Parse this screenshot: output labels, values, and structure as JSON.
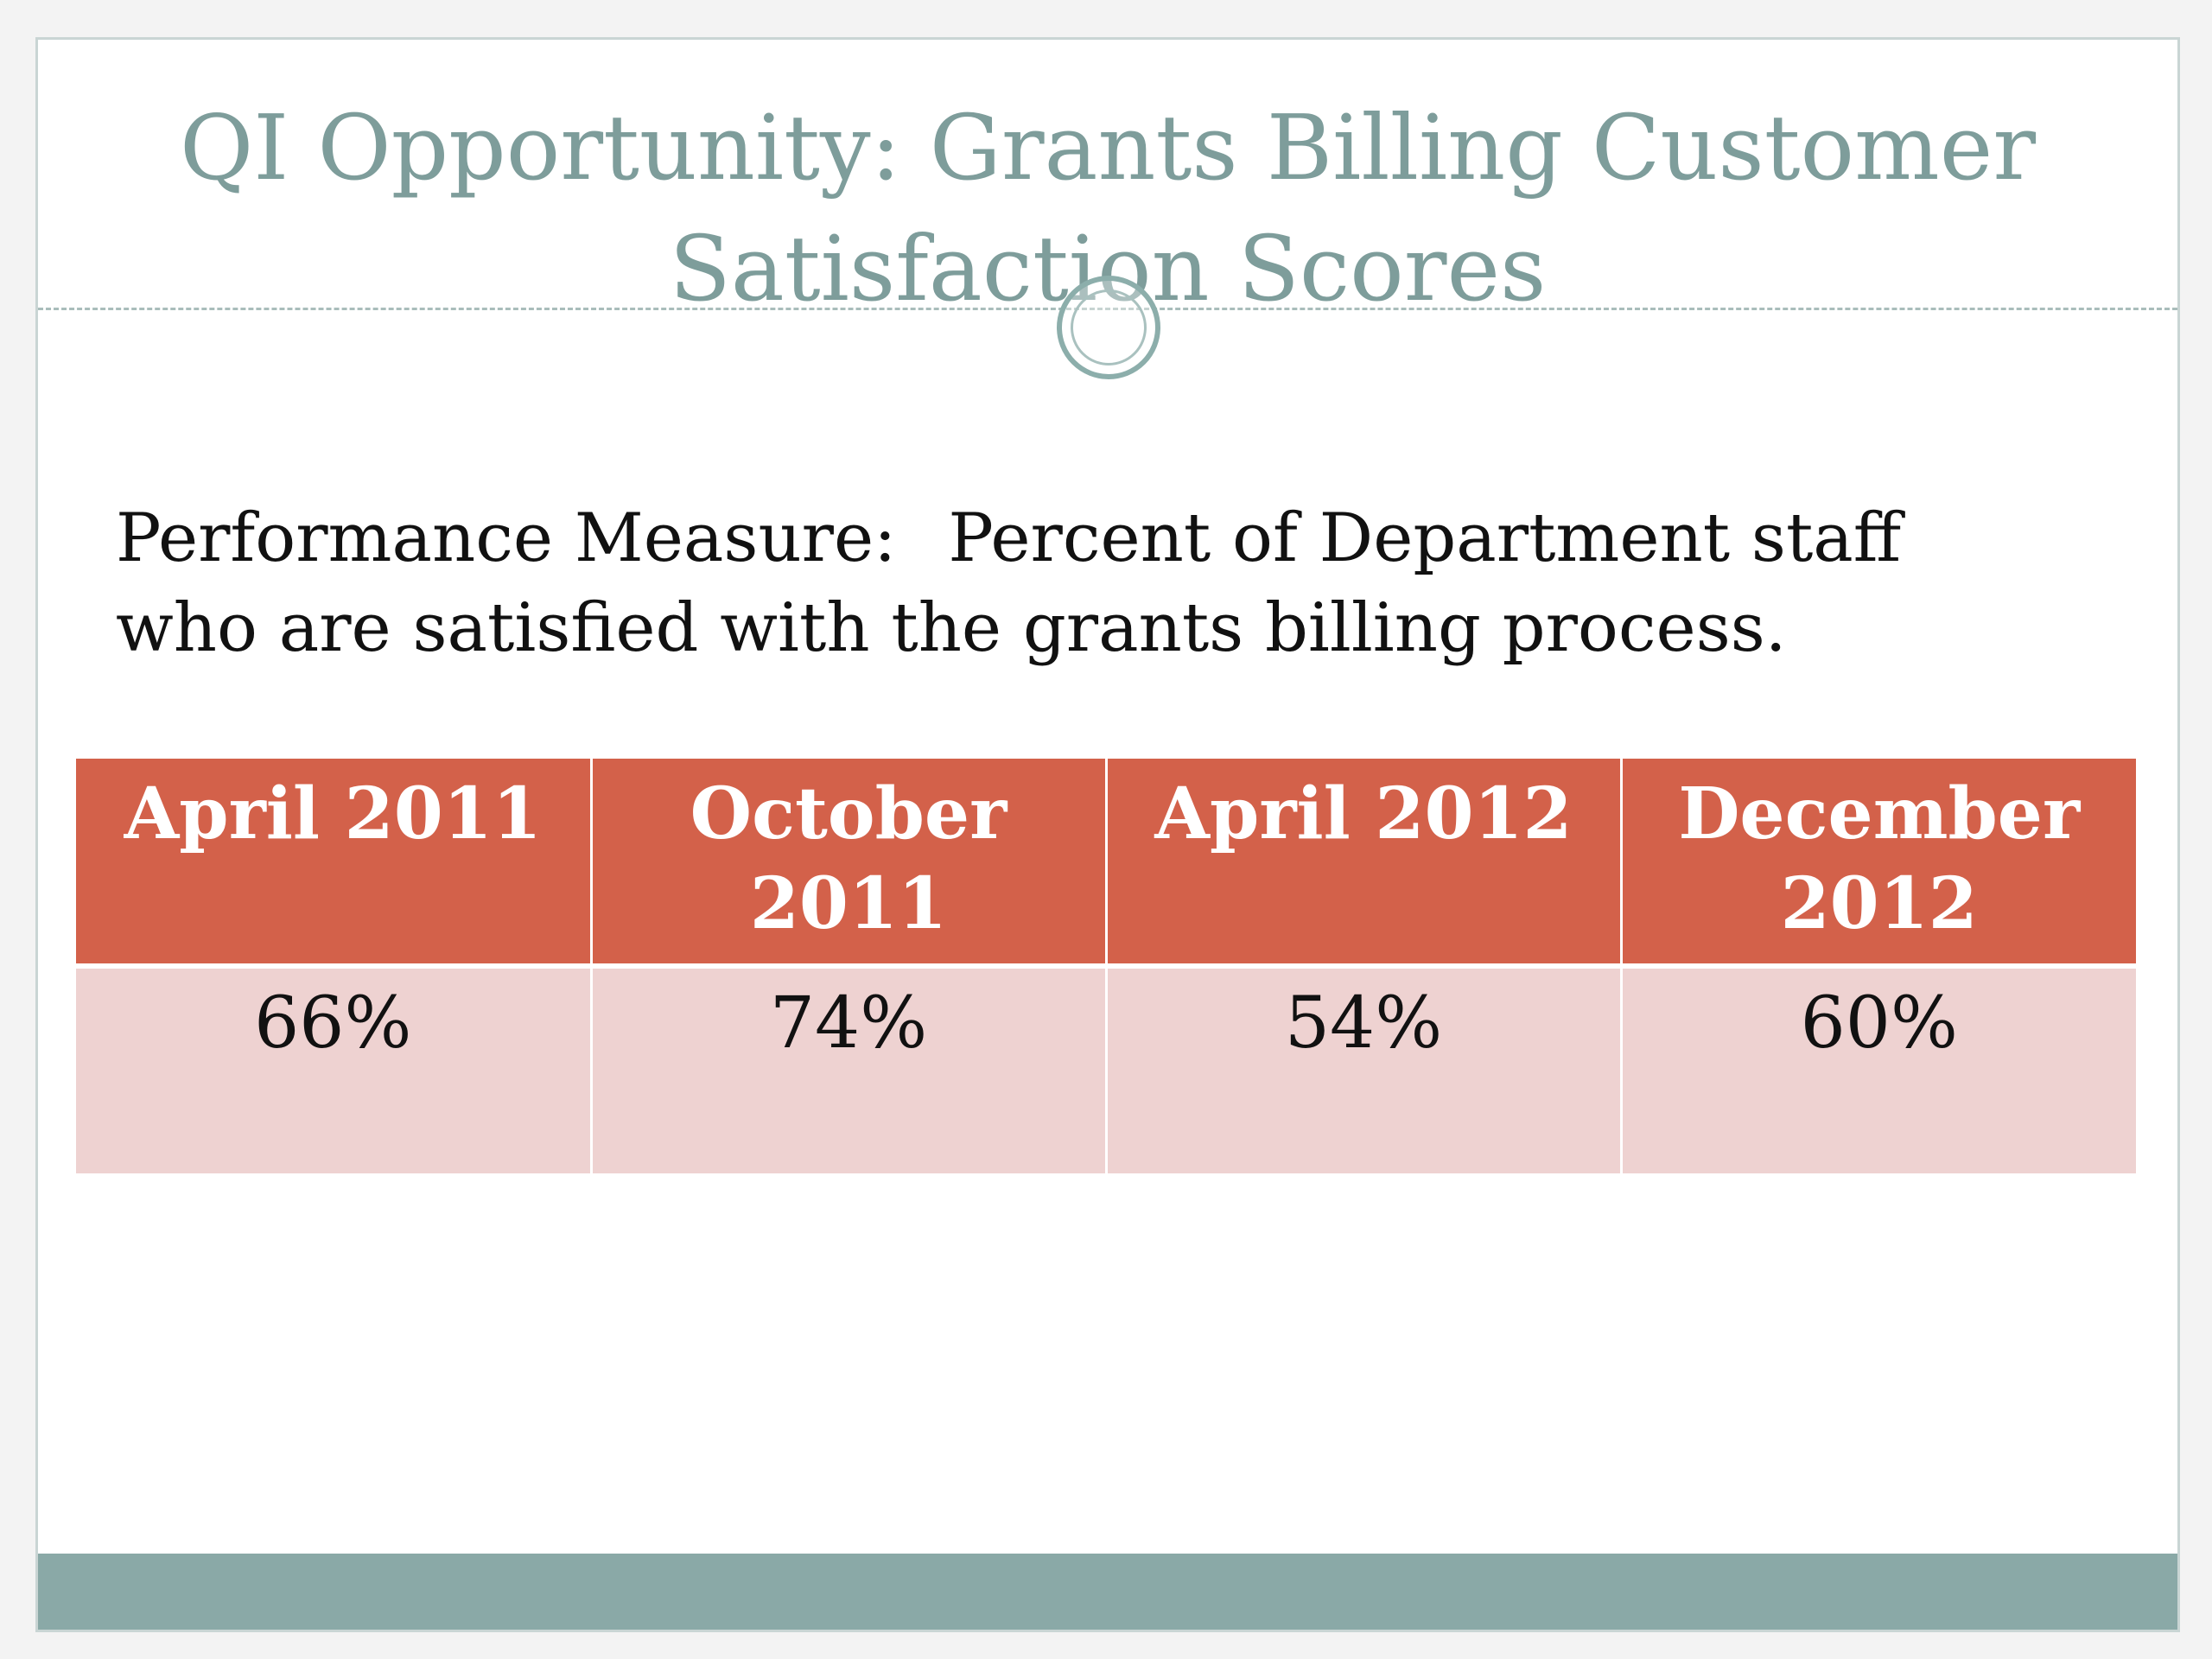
{
  "slide": {
    "title_line1": "QI Opportunity: Grants Billing Customer",
    "title_line2": "Satisfaction Scores",
    "measure_label": "Performance Measure:",
    "measure_text": "Percent of Department staff who are satisfied with the grants billing process."
  },
  "table": {
    "headers": [
      "April 2011",
      "October 2011",
      "April 2012",
      "December 2012"
    ],
    "values": [
      "66%",
      "74%",
      "54%",
      "60%"
    ]
  },
  "colors": {
    "title": "#7e9d9b",
    "header_fill": "#d3614a",
    "cell_fill": "#eed2d1",
    "footer_bar": "#8aa9a7"
  }
}
